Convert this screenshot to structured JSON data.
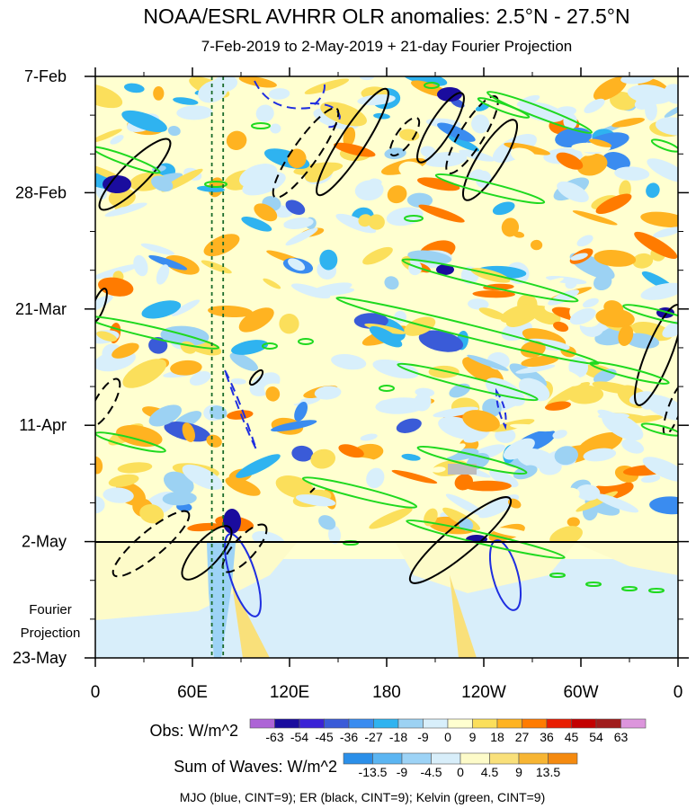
{
  "chart_data": {
    "type": "heatmap",
    "title": "NOAA/ESRL AVHRR OLR anomalies: 2.5°N - 27.5°N",
    "subtitle": "7-Feb-2019 to 2-May-2019 + 21-day Fourier Projection",
    "x_tick_labels": [
      "0",
      "60E",
      "120E",
      "180",
      "120W",
      "60W",
      "0"
    ],
    "x_tick_longitudes": [
      0,
      60,
      120,
      180,
      240,
      300,
      360
    ],
    "xlim": [
      0,
      360
    ],
    "y_tick_labels": [
      "7-Feb",
      "28-Feb",
      "21-Mar",
      "11-Apr",
      "2-May",
      "23-May"
    ],
    "y_tick_days": [
      0,
      21,
      42,
      63,
      84,
      105
    ],
    "ylim_days": [
      0,
      105
    ],
    "observation_end_label": "2-May",
    "projection_label_lines": [
      "Fourier",
      "Projection"
    ],
    "obs_colorbar": {
      "label": "Obs: W/m^2",
      "ticks": [
        "-63",
        "-54",
        "-45",
        "-36",
        "-27",
        "-18",
        "-9",
        "0",
        "9",
        "18",
        "27",
        "36",
        "45",
        "54",
        "63"
      ],
      "colors": [
        "#a453d1",
        "#1a0c9e",
        "#3a22d6",
        "#3a5bd8",
        "#3a8cf0",
        "#2fb3f0",
        "#9cd2f3",
        "#d8effb",
        "#ffffd0",
        "#fbdf5b",
        "#ffb321",
        "#ff7b00",
        "#e81c00",
        "#c30000",
        "#a01b1b",
        "#d88ad8"
      ]
    },
    "waves_colorbar": {
      "label": "Sum of Waves: W/m^2",
      "ticks": [
        "-13.5",
        "-9",
        "-4.5",
        "0",
        "4.5",
        "9",
        "13.5"
      ],
      "colors": [
        "#2b8fe9",
        "#5bb5f2",
        "#9dd3f6",
        "#d8eefa",
        "#fdfbc9",
        "#f9e07a",
        "#f7b533",
        "#f58a0f"
      ]
    },
    "legend_note": "MJO (blue, CINT=9); ER (black, CINT=9); Kelvin (green, CINT=9)",
    "contour_series": [
      {
        "name": "MJO",
        "color": "#1f2ee0"
      },
      {
        "name": "ER",
        "color": "#000000"
      },
      {
        "name": "Kelvin",
        "color": "#1fd91f"
      }
    ],
    "reference_longitudes_dotted": [
      72,
      79
    ],
    "reference_line_color": "#1a6b2a"
  }
}
